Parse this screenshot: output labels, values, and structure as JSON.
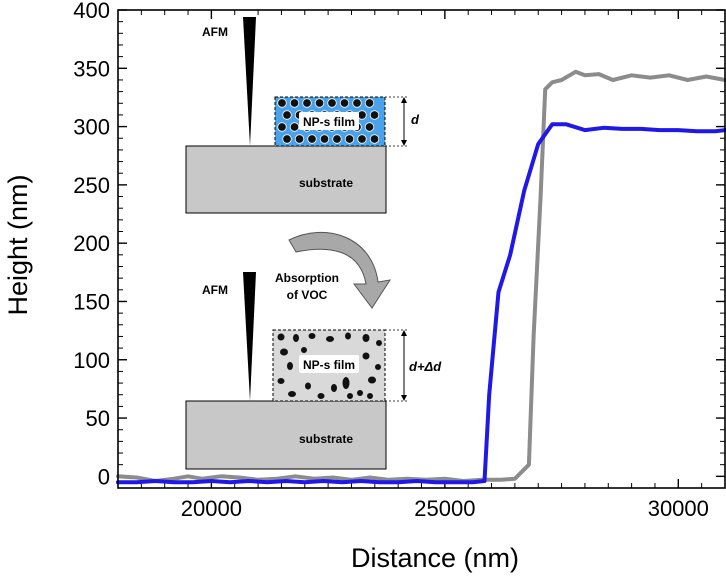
{
  "chart_data": {
    "type": "line",
    "title": "",
    "xlabel": "Distance (nm)",
    "ylabel": "Height (nm)",
    "xlim": [
      18000,
      31000
    ],
    "ylim": [
      -10,
      400
    ],
    "xticks": [
      20000,
      25000,
      30000
    ],
    "xtick_labels": [
      "20000",
      "25000",
      "30000"
    ],
    "yticks": [
      0,
      50,
      100,
      150,
      200,
      250,
      300,
      350,
      400
    ],
    "ytick_labels": [
      "0",
      "50",
      "100",
      "150",
      "200",
      "250",
      "300",
      "350",
      "400"
    ],
    "grid": false,
    "legend": "none",
    "series": [
      {
        "name": "gray",
        "color": "#8c8c8c",
        "x": [
          18000,
          18400,
          18800,
          19200,
          19500,
          19800,
          20200,
          20600,
          21000,
          21400,
          21800,
          22200,
          22600,
          23000,
          23400,
          23800,
          24200,
          24600,
          25000,
          25400,
          25800,
          26200,
          26500,
          26800,
          26900,
          27050,
          27150,
          27300,
          27500,
          27800,
          28000,
          28300,
          28600,
          29000,
          29400,
          29800,
          30200,
          30600,
          31000
        ],
        "y": [
          0,
          -1,
          -4,
          -2,
          0,
          -2,
          0,
          -1,
          -3,
          -2,
          0,
          -2,
          -1,
          -3,
          -1,
          -3,
          -2,
          -3,
          -2,
          -4,
          -3,
          -3,
          -2,
          10,
          120,
          240,
          332,
          338,
          340,
          347,
          344,
          345,
          340,
          344,
          342,
          344,
          340,
          343,
          340
        ]
      },
      {
        "name": "blue",
        "color": "#1f18e6",
        "x": [
          18000,
          18400,
          18800,
          19200,
          19600,
          20000,
          20400,
          20800,
          21200,
          21600,
          22000,
          22400,
          22800,
          23200,
          23600,
          24000,
          24400,
          24800,
          25200,
          25600,
          25850,
          25950,
          26150,
          26400,
          26700,
          27000,
          27300,
          27600,
          28000,
          28400,
          28800,
          29200,
          29600,
          30000,
          30400,
          30800,
          31000
        ],
        "y": [
          -5,
          -5,
          -4,
          -5,
          -5,
          -4,
          -5,
          -4,
          -5,
          -4,
          -5,
          -4,
          -5,
          -4,
          -5,
          -5,
          -4,
          -5,
          -5,
          -5,
          -4,
          70,
          158,
          190,
          245,
          285,
          302,
          302,
          297,
          299,
          298,
          298,
          297,
          297,
          296,
          296,
          297
        ]
      }
    ]
  },
  "inset": {
    "top": {
      "probe_label": "AFM",
      "film_label": "NP-s film",
      "thickness_label": "d",
      "substrate_label": "substrate"
    },
    "arrow_label_line1": "Absorption",
    "arrow_label_line2": "of VOC",
    "bottom": {
      "probe_label": "AFM",
      "film_label": "NP-s film",
      "thickness_label": "d+Δd",
      "substrate_label": "substrate"
    },
    "colors": {
      "film_top_fill": "#4aa3ea",
      "film_bottom_fill": "#d9d9d9",
      "substrate_fill": "#c8c8c8"
    }
  }
}
